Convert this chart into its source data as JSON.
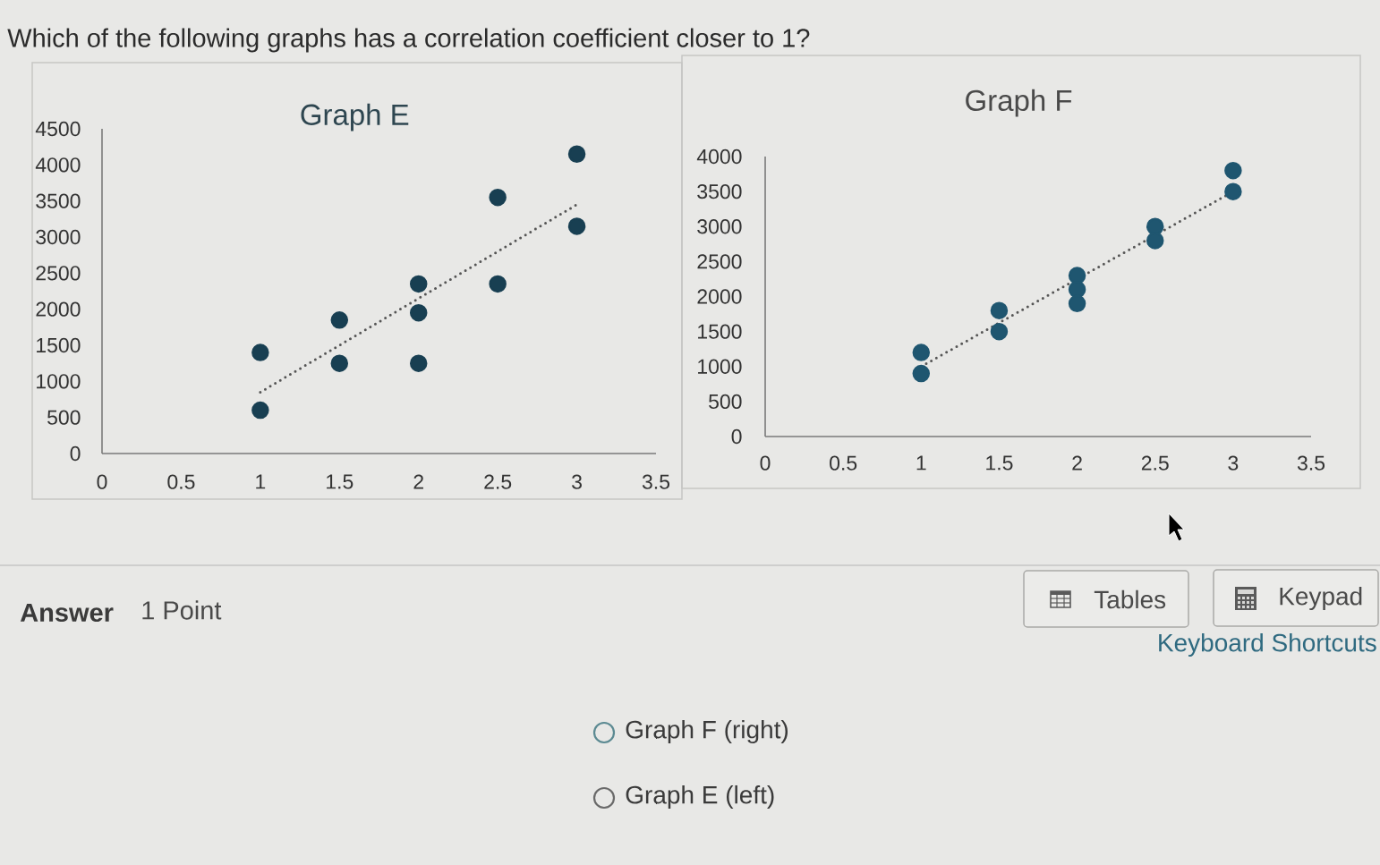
{
  "chart_data": [
    {
      "type": "other",
      "title": "Which of the following graphs has a correlation coefficient closer to 1?"
    },
    {
      "type": "scatter",
      "title": "Graph E",
      "xlim": [
        0,
        3.5
      ],
      "xticks": [
        0,
        0.5,
        1,
        1.5,
        2,
        2.5,
        3,
        3.5
      ],
      "ylim": [
        0,
        4500
      ],
      "yticks": [
        0,
        500,
        1000,
        1500,
        2000,
        2500,
        3000,
        3500,
        4000,
        4500
      ],
      "series": [
        {
          "x": [
            1,
            1,
            1.5,
            1.5,
            2,
            2,
            2,
            2.5,
            2.5,
            3,
            3
          ],
          "values": [
            1400,
            600,
            1850,
            1250,
            2350,
            1950,
            1250,
            3550,
            2350,
            4150,
            3150
          ],
          "color": "#183f52",
          "marker": "circle"
        },
        {
          "type": "line",
          "x": [
            1,
            3
          ],
          "values": [
            850,
            3450
          ],
          "color": "#555555",
          "line_style": "dotted"
        }
      ]
    },
    {
      "type": "scatter",
      "title": "Graph F",
      "xlim": [
        0,
        3.5
      ],
      "xticks": [
        0,
        0.5,
        1,
        1.5,
        2,
        2.5,
        3,
        3.5
      ],
      "ylim": [
        0,
        4000
      ],
      "yticks": [
        0,
        500,
        1000,
        1500,
        2000,
        2500,
        3000,
        3500,
        4000
      ],
      "series": [
        {
          "x": [
            1,
            1,
            1.5,
            1.5,
            2,
            2,
            2,
            2.5,
            2.5,
            3,
            3
          ],
          "values": [
            1200,
            900,
            1800,
            1500,
            2300,
            2100,
            1900,
            3000,
            2800,
            3800,
            3500
          ],
          "color": "#1f5670",
          "marker": "circle"
        },
        {
          "type": "line",
          "x": [
            1,
            3
          ],
          "values": [
            1000,
            3500
          ],
          "color": "#555555",
          "line_style": "dotted"
        }
      ]
    },
    {
      "type": "other",
      "annotations": [
        "Answer",
        "1 Point",
        "Tables",
        "Keypad",
        "Keyboard Shortcuts",
        "Graph F (right)",
        "Graph E (left)"
      ]
    }
  ]
}
